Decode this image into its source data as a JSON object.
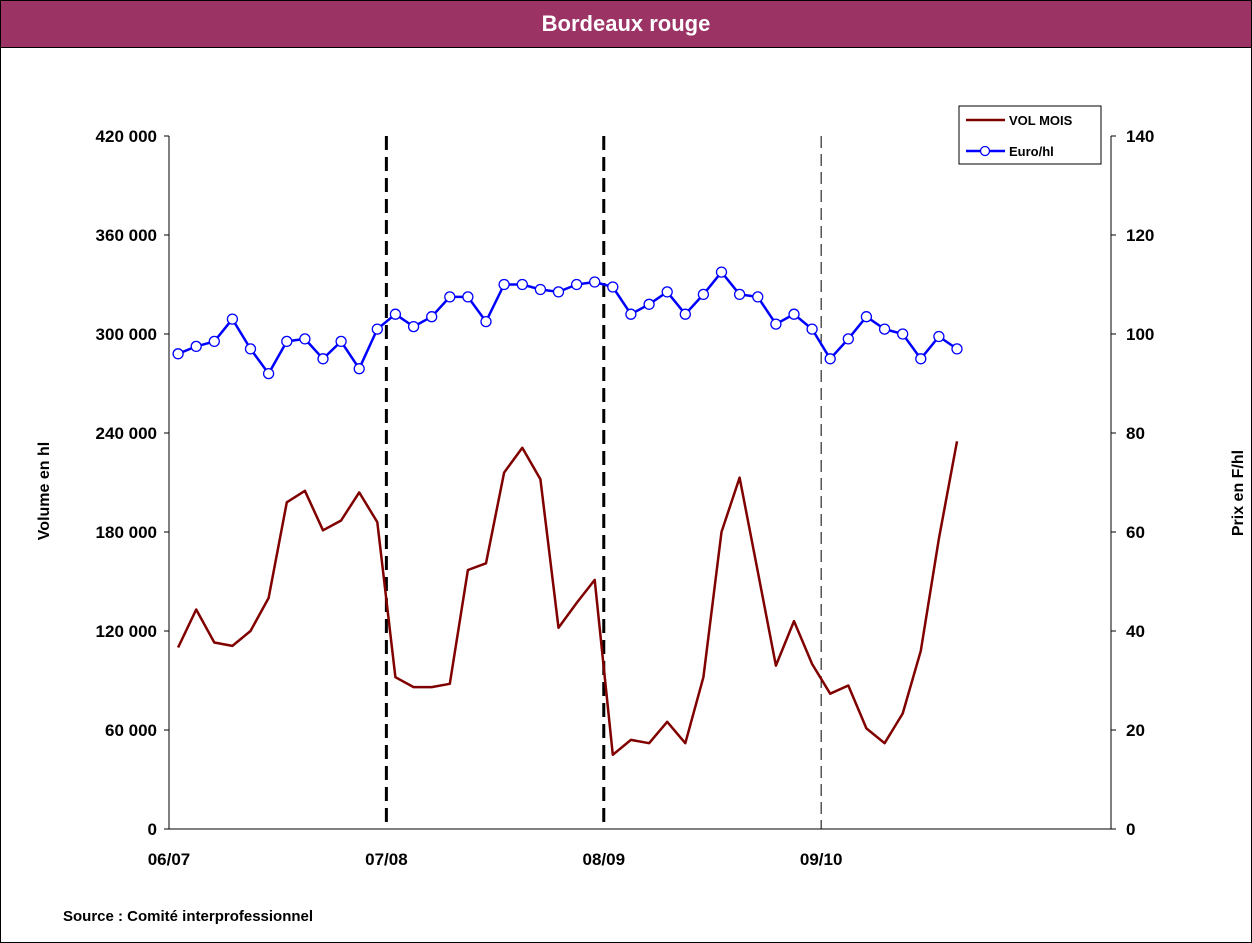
{
  "chart_data": {
    "type": "line",
    "title": "Bordeaux rouge",
    "ylabel_left": "Volume en hl",
    "ylabel_right": "Prix en F/hl",
    "source": "Source : Comité interprofessionnel",
    "categories": [
      "06/07",
      "07/08",
      "08/09",
      "09/10"
    ],
    "x_range": [
      0,
      52
    ],
    "y_left": {
      "range": [
        0,
        420000
      ],
      "ticks": [
        0,
        60000,
        120000,
        180000,
        240000,
        300000,
        360000,
        420000
      ],
      "tick_labels": [
        "0",
        "60 000",
        "120 000",
        "180 000",
        "240 000",
        "300 000",
        "360 000",
        "420 000"
      ]
    },
    "y_right": {
      "range": [
        0,
        140
      ],
      "ticks": [
        0,
        20,
        40,
        60,
        80,
        100,
        120,
        140
      ],
      "tick_labels": [
        "0",
        "20",
        "40",
        "60",
        "80",
        "100",
        "120",
        "140"
      ]
    },
    "vertical_dividers": [
      {
        "x": 12,
        "style": "bold-dashed"
      },
      {
        "x": 24,
        "style": "bold-dashed"
      },
      {
        "x": 36,
        "style": "thin-dashed"
      }
    ],
    "legend": {
      "position": "top-right"
    },
    "colors": {
      "title_bar": "#9b3465",
      "vol": "#800000",
      "euro": "#0000ff"
    },
    "series": [
      {
        "name": "VOL MOIS",
        "axis": "left",
        "color": "#800000",
        "marker": "none",
        "x": [
          0.5,
          1.5,
          2.5,
          3.5,
          4.5,
          5.5,
          6.5,
          7.5,
          8.5,
          9.5,
          10.5,
          11.5,
          12.5,
          13.5,
          14.5,
          15.5,
          16.5,
          17.5,
          18.5,
          19.5,
          20.5,
          21.5,
          22.5,
          23.5,
          24.5,
          25.5,
          26.5,
          27.5,
          28.5,
          29.5,
          30.5,
          31.5,
          32.5,
          33.5,
          34.5,
          35.5,
          36.5,
          37.5,
          38.5,
          39.5,
          40.5,
          41.5,
          42.5,
          43.5
        ],
        "values": [
          110000,
          133000,
          113000,
          111000,
          120000,
          140000,
          198000,
          205000,
          181000,
          187000,
          204000,
          186000,
          92000,
          86000,
          86000,
          88000,
          157000,
          161000,
          216000,
          231000,
          212000,
          122000,
          137000,
          151000,
          45000,
          54000,
          52000,
          65000,
          52000,
          92000,
          180000,
          213000,
          156000,
          99000,
          126000,
          100000,
          82000,
          87000,
          61000,
          52000,
          70000,
          108000,
          176000,
          235000
        ]
      },
      {
        "name": "Euro/hl",
        "axis": "right",
        "color": "#0000ff",
        "marker": "circle",
        "x": [
          0.5,
          1.5,
          2.5,
          3.5,
          4.5,
          5.5,
          6.5,
          7.5,
          8.5,
          9.5,
          10.5,
          11.5,
          12.5,
          13.5,
          14.5,
          15.5,
          16.5,
          17.5,
          18.5,
          19.5,
          20.5,
          21.5,
          22.5,
          23.5,
          24.5,
          25.5,
          26.5,
          27.5,
          28.5,
          29.5,
          30.5,
          31.5,
          32.5,
          33.5,
          34.5,
          35.5,
          36.5,
          37.5,
          38.5,
          39.5,
          40.5,
          41.5,
          42.5,
          43.5
        ],
        "values": [
          96,
          97.5,
          98.5,
          103,
          97,
          92,
          98.5,
          99,
          95,
          98.5,
          93,
          101,
          104,
          101.5,
          103.5,
          107.5,
          107.5,
          102.5,
          110,
          110,
          109,
          108.5,
          110,
          110.5,
          109.5,
          104,
          106,
          108.5,
          104,
          108,
          112.5,
          108,
          107.5,
          102,
          104,
          101,
          95,
          99,
          103.5,
          101,
          100,
          95,
          99.5,
          97
        ]
      }
    ]
  }
}
